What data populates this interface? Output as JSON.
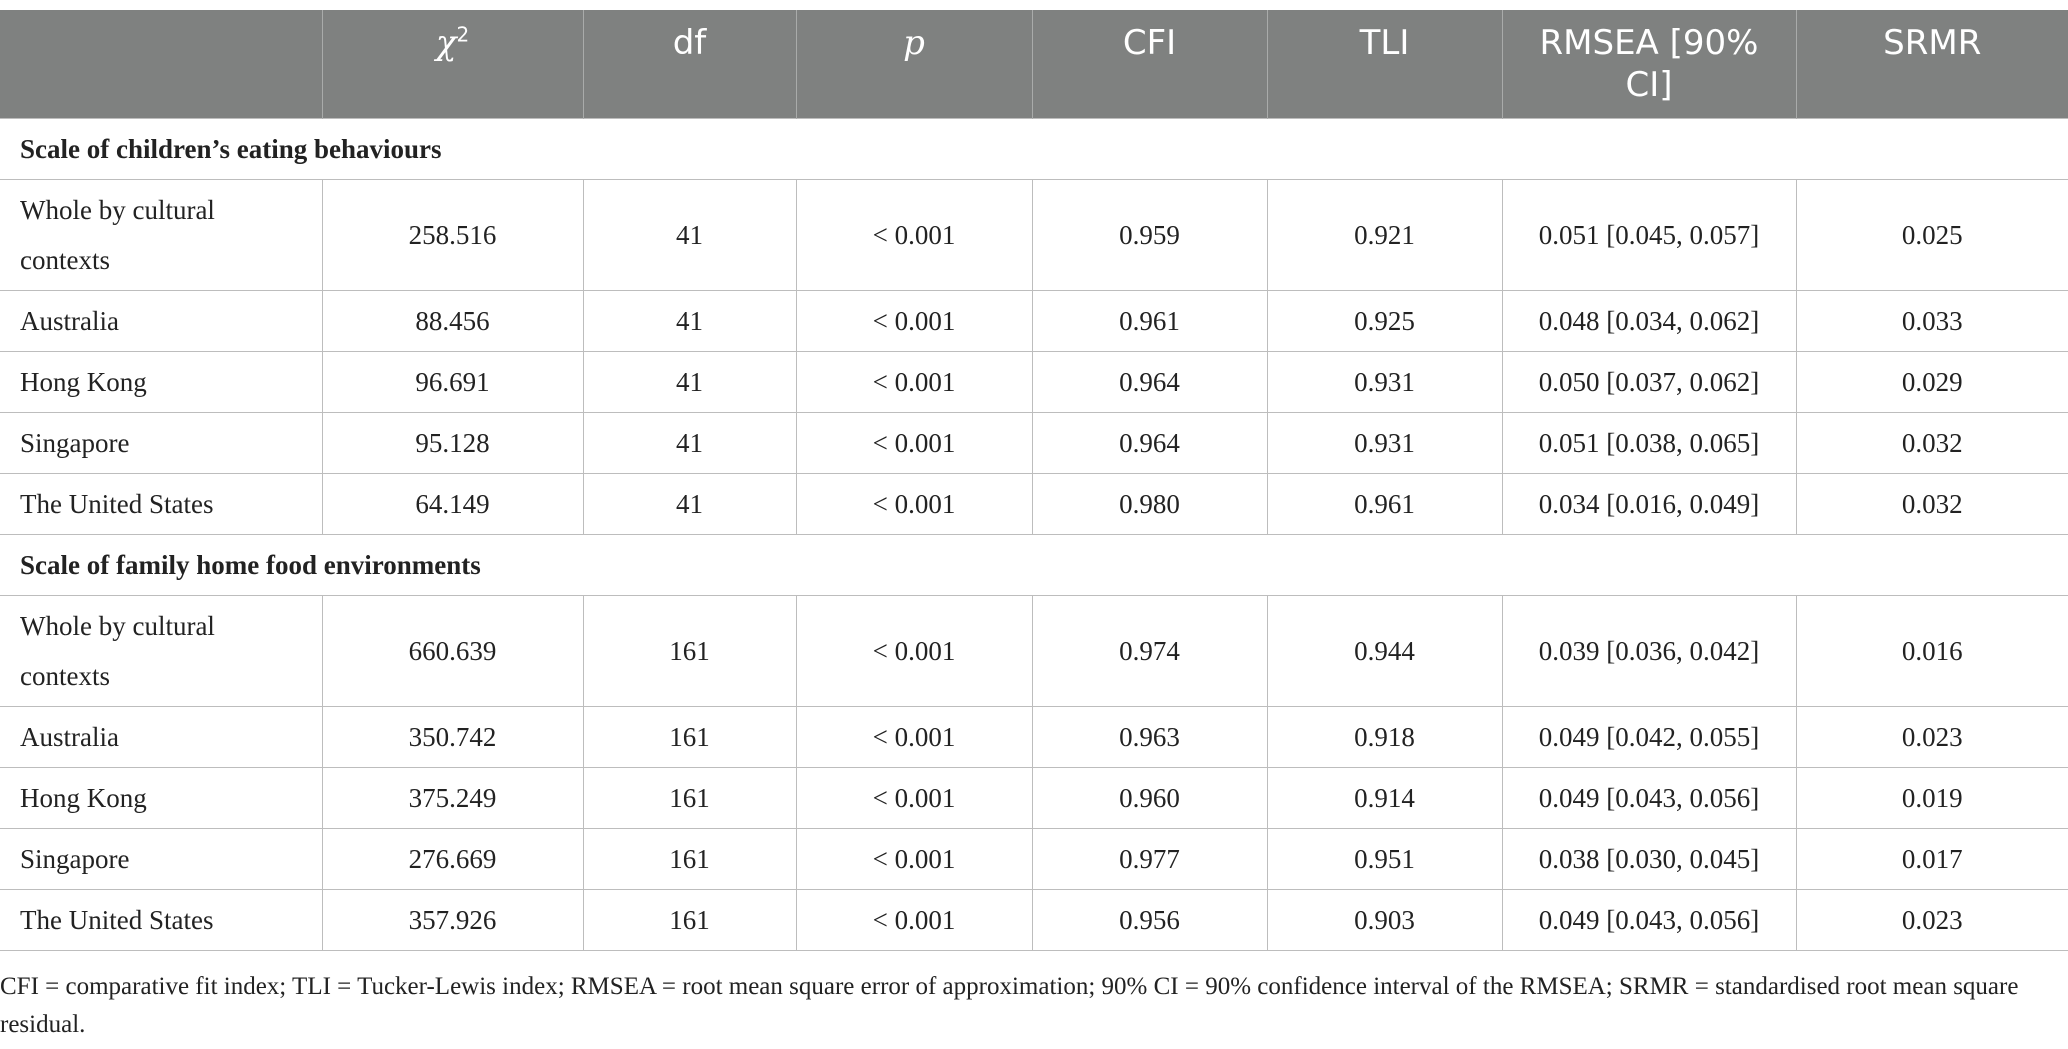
{
  "table": {
    "headers": {
      "label": "",
      "chi_symbol": "χ",
      "chi_sup": "2",
      "df": "df",
      "p": "p",
      "cfi": "CFI",
      "tli": "TLI",
      "rmsea": "RMSEA [90% CI]",
      "srmr": "SRMR"
    },
    "sections": [
      {
        "title": "Scale of children’s eating behaviours",
        "rows": [
          {
            "label": "Whole by cultural contexts",
            "chi2": "258.516",
            "df": "41",
            "p": "< 0.001",
            "cfi": "0.959",
            "tli": "0.921",
            "rmsea": "0.051 [0.045, 0.057]",
            "srmr": "0.025"
          },
          {
            "label": "Australia",
            "chi2": "88.456",
            "df": "41",
            "p": "< 0.001",
            "cfi": "0.961",
            "tli": "0.925",
            "rmsea": "0.048 [0.034, 0.062]",
            "srmr": "0.033"
          },
          {
            "label": "Hong Kong",
            "chi2": "96.691",
            "df": "41",
            "p": "< 0.001",
            "cfi": "0.964",
            "tli": "0.931",
            "rmsea": "0.050 [0.037, 0.062]",
            "srmr": "0.029"
          },
          {
            "label": "Singapore",
            "chi2": "95.128",
            "df": "41",
            "p": "< 0.001",
            "cfi": "0.964",
            "tli": "0.931",
            "rmsea": "0.051 [0.038, 0.065]",
            "srmr": "0.032"
          },
          {
            "label": "The United States",
            "chi2": "64.149",
            "df": "41",
            "p": "< 0.001",
            "cfi": "0.980",
            "tli": "0.961",
            "rmsea": "0.034 [0.016, 0.049]",
            "srmr": "0.032"
          }
        ]
      },
      {
        "title": "Scale of family home food environments",
        "rows": [
          {
            "label": "Whole by cultural contexts",
            "chi2": "660.639",
            "df": "161",
            "p": "< 0.001",
            "cfi": "0.974",
            "tli": "0.944",
            "rmsea": "0.039 [0.036, 0.042]",
            "srmr": "0.016"
          },
          {
            "label": "Australia",
            "chi2": "350.742",
            "df": "161",
            "p": "< 0.001",
            "cfi": "0.963",
            "tli": "0.918",
            "rmsea": "0.049 [0.042, 0.055]",
            "srmr": "0.023"
          },
          {
            "label": "Hong Kong",
            "chi2": "375.249",
            "df": "161",
            "p": "< 0.001",
            "cfi": "0.960",
            "tli": "0.914",
            "rmsea": "0.049 [0.043, 0.056]",
            "srmr": "0.019"
          },
          {
            "label": "Singapore",
            "chi2": "276.669",
            "df": "161",
            "p": "< 0.001",
            "cfi": "0.977",
            "tli": "0.951",
            "rmsea": "0.038 [0.030, 0.045]",
            "srmr": "0.017"
          },
          {
            "label": "The United States",
            "chi2": "357.926",
            "df": "161",
            "p": "< 0.001",
            "cfi": "0.956",
            "tli": "0.903",
            "rmsea": "0.049 [0.043, 0.056]",
            "srmr": "0.023"
          }
        ]
      }
    ]
  },
  "footnote": "CFI = comparative fit index; TLI = Tucker-Lewis index; RMSEA = root mean square error of approximation; 90% CI = 90% confidence interval of the RMSEA; SRMR = standardised root mean square residual.",
  "colors": {
    "header_bg": "#7f8180",
    "header_text": "#ffffff",
    "border": "#bdbdbd",
    "body_text": "#222222"
  }
}
